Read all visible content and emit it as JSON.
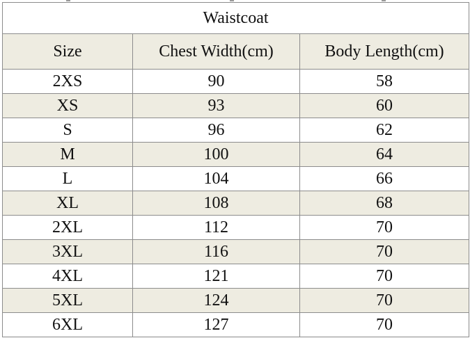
{
  "table": {
    "title": "Waistcoat",
    "headers": [
      "Size",
      "Chest Width(cm)",
      "Body Length(cm)"
    ],
    "rows": [
      [
        "2XS",
        "90",
        "58"
      ],
      [
        "XS",
        "93",
        "60"
      ],
      [
        "S",
        "96",
        "62"
      ],
      [
        "M",
        "100",
        "64"
      ],
      [
        "L",
        "104",
        "66"
      ],
      [
        "XL",
        "108",
        "68"
      ],
      [
        "2XL",
        "112",
        "70"
      ],
      [
        "3XL",
        "116",
        "70"
      ],
      [
        "4XL",
        "121",
        "70"
      ],
      [
        "5XL",
        "124",
        "70"
      ],
      [
        "6XL",
        "127",
        "70"
      ]
    ]
  },
  "colors": {
    "stripe": "#eeece1",
    "border": "#8c8c8c",
    "text": "#111111"
  }
}
